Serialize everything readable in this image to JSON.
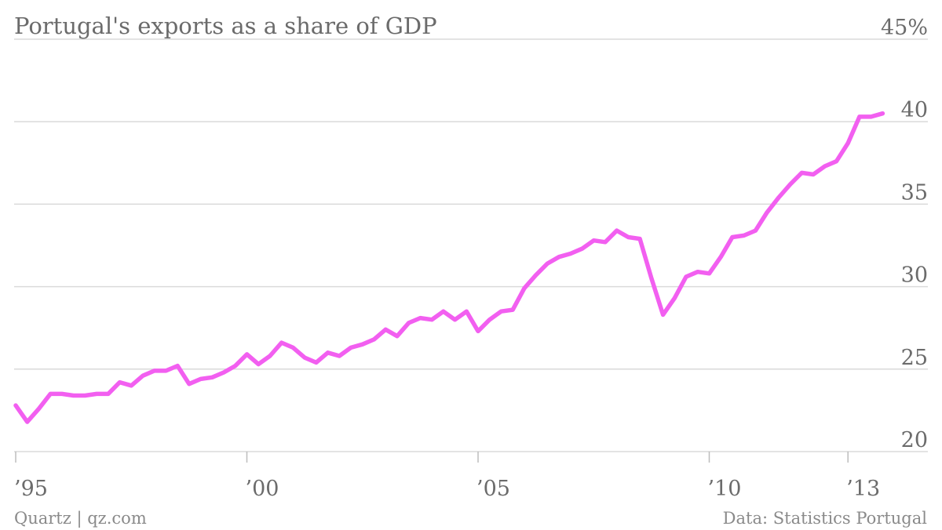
{
  "chart_data": {
    "type": "line",
    "title": "Portugal's exports as a share of GDP",
    "source": "Data: Statistics Portugal",
    "credit": "Quartz | qz.com",
    "xlabel": "",
    "ylabel": "",
    "ylim": [
      20,
      45
    ],
    "y_ticks": [
      20,
      25,
      30,
      35,
      40,
      45
    ],
    "y_tick_labels": [
      "20",
      "25",
      "30",
      "35",
      "40",
      "45%"
    ],
    "xlim": [
      1995.0,
      2013.75
    ],
    "x_ticks": [
      1995,
      2000,
      2005,
      2010,
      2013
    ],
    "x_tick_labels": [
      "’95",
      "’00",
      "’05",
      "’10",
      "’13"
    ],
    "grid": true,
    "line_color": "#f25ff0",
    "series": [
      {
        "x": [
          1995.0,
          1995.25,
          1995.5,
          1995.75,
          1996.0,
          1996.25,
          1996.5,
          1996.75,
          1997.0,
          1997.25,
          1997.5,
          1997.75,
          1998.0,
          1998.25,
          1998.5,
          1998.75,
          1999.0,
          1999.25,
          1999.5,
          1999.75,
          2000.0,
          2000.25,
          2000.5,
          2000.75,
          2001.0,
          2001.25,
          2001.5,
          2001.75,
          2002.0,
          2002.25,
          2002.5,
          2002.75,
          2003.0,
          2003.25,
          2003.5,
          2003.75,
          2004.0,
          2004.25,
          2004.5,
          2004.75,
          2005.0,
          2005.25,
          2005.5,
          2005.75,
          2006.0,
          2006.25,
          2006.5,
          2006.75,
          2007.0,
          2007.25,
          2007.5,
          2007.75,
          2008.0,
          2008.25,
          2008.5,
          2008.75,
          2009.0,
          2009.25,
          2009.5,
          2009.75,
          2010.0,
          2010.25,
          2010.5,
          2010.75,
          2011.0,
          2011.25,
          2011.5,
          2011.75,
          2012.0,
          2012.25,
          2012.5,
          2012.75,
          2013.0,
          2013.25,
          2013.5,
          2013.75
        ],
        "values": [
          22.8,
          21.8,
          22.6,
          23.5,
          23.5,
          23.4,
          23.4,
          23.5,
          23.5,
          24.2,
          24.0,
          24.6,
          24.9,
          24.9,
          25.2,
          24.1,
          24.4,
          24.5,
          24.8,
          25.2,
          25.9,
          25.3,
          25.8,
          26.6,
          26.3,
          25.7,
          25.4,
          26.0,
          25.8,
          26.3,
          26.5,
          26.8,
          27.4,
          27.0,
          27.8,
          28.1,
          28.0,
          28.5,
          28.0,
          28.5,
          27.3,
          28.0,
          28.5,
          28.6,
          29.9,
          30.7,
          31.4,
          31.8,
          32.0,
          32.3,
          32.8,
          32.7,
          33.4,
          33.0,
          32.9,
          30.5,
          28.3,
          29.3,
          30.6,
          30.9,
          30.8,
          31.8,
          33.0,
          33.1,
          33.4,
          34.5,
          35.4,
          36.2,
          36.9,
          36.8,
          37.3,
          37.6,
          38.7,
          40.3,
          40.3,
          40.5
        ]
      }
    ]
  }
}
